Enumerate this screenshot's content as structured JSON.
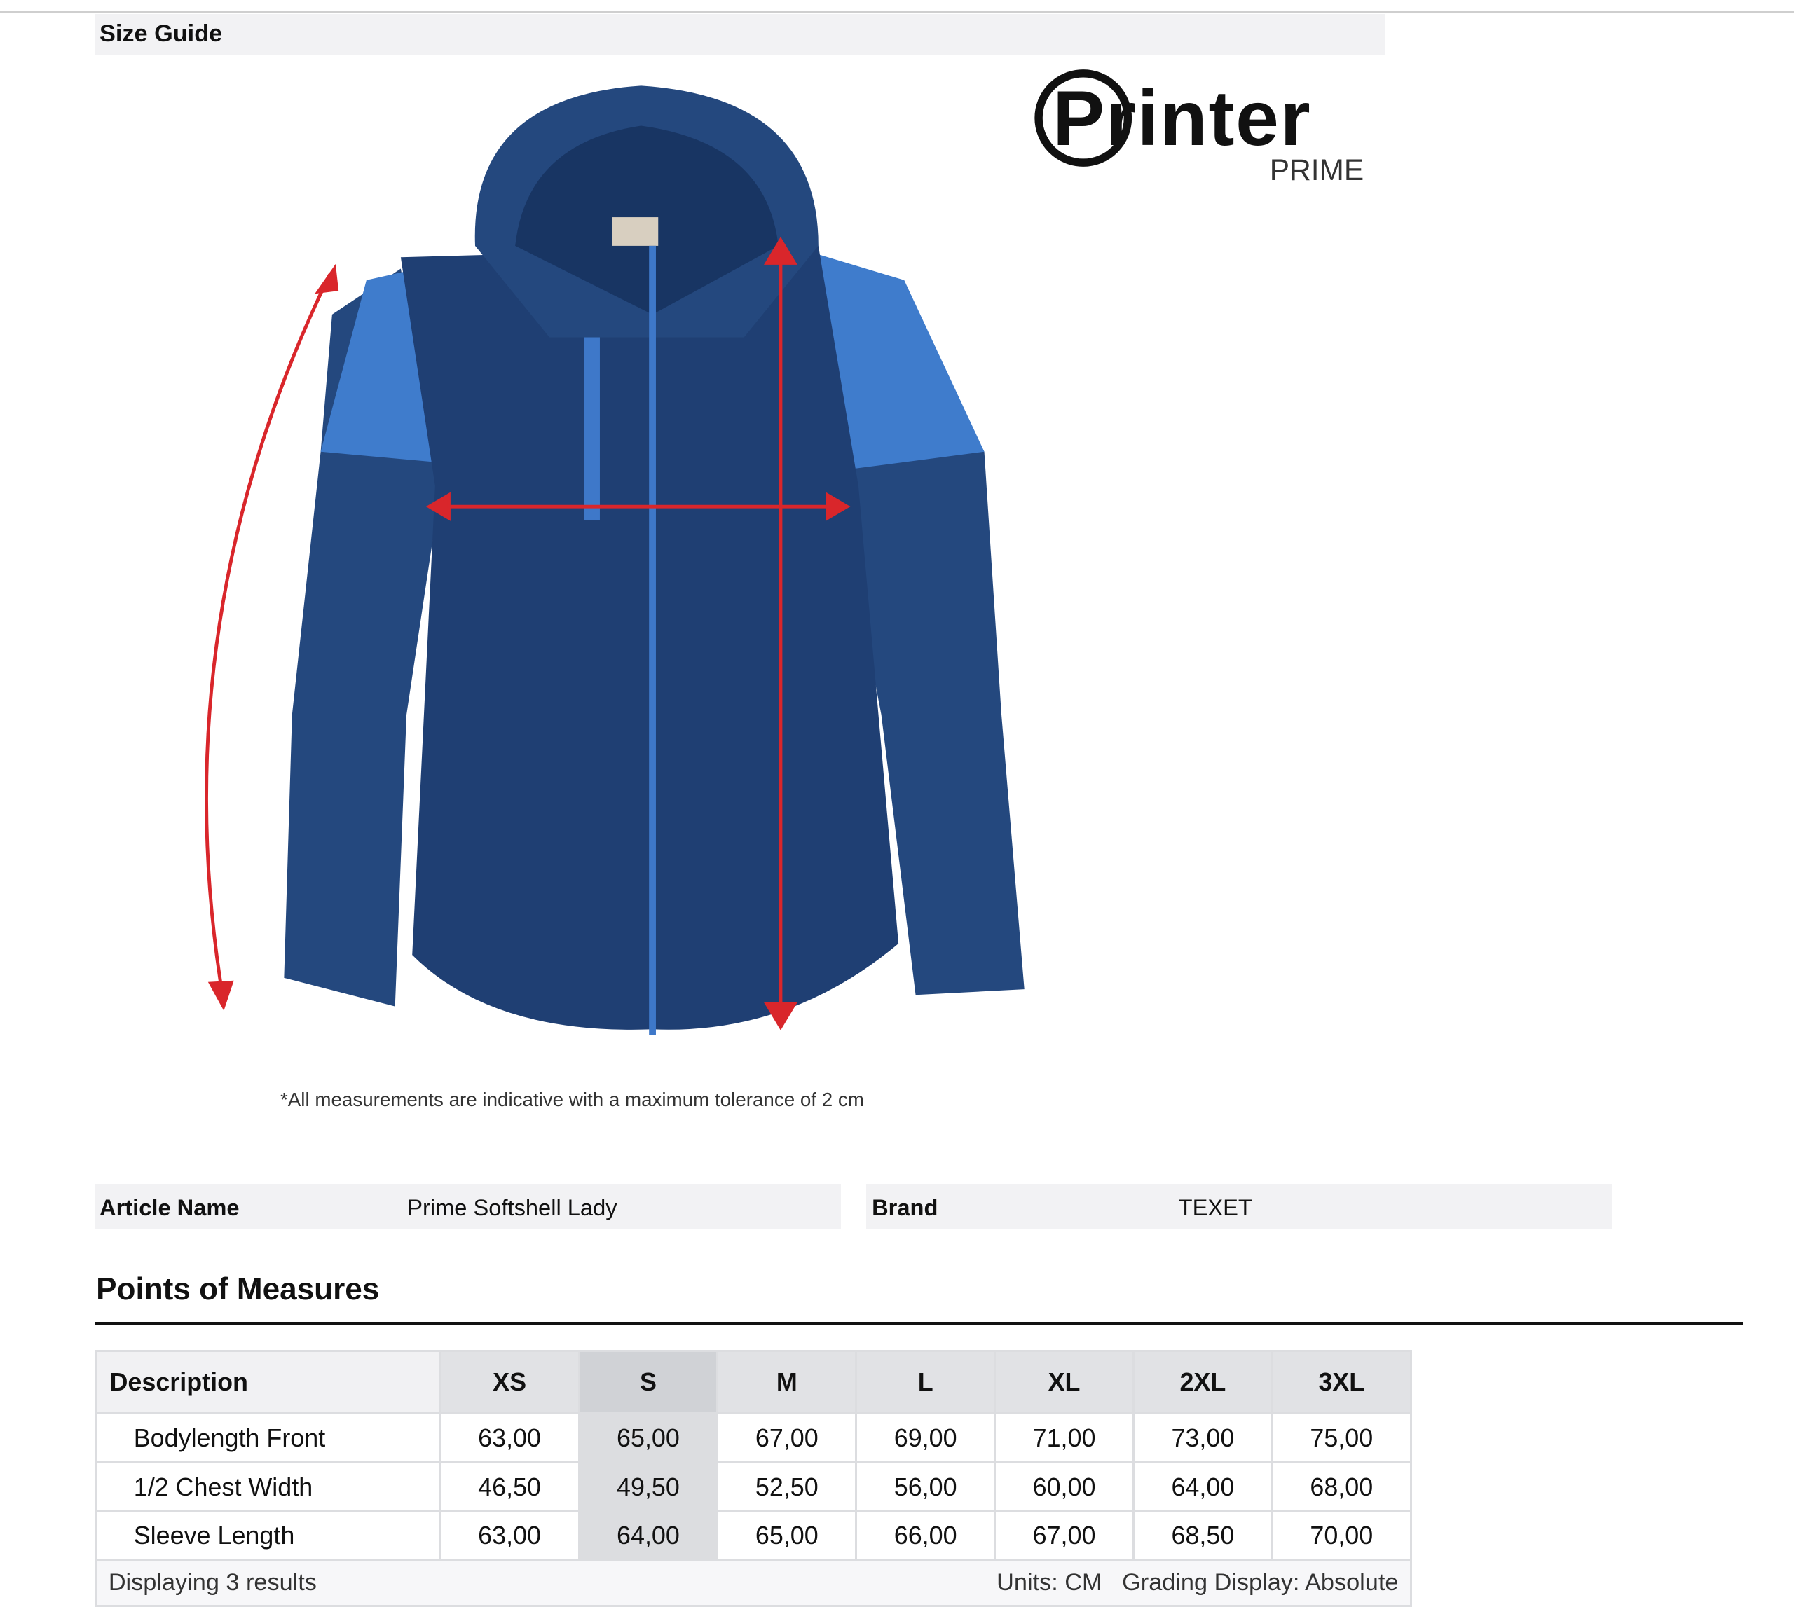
{
  "header": {
    "title": "Size Guide"
  },
  "logo": {
    "text": "Printer",
    "sub": "PRIME"
  },
  "image": {
    "icon": "jacket-measurement-diagram",
    "arrow_color": "#d9262b",
    "jacket_colors": [
      "#1f3f73",
      "#3e78c9"
    ]
  },
  "disclaimer": "*All measurements are indicative with a maximum tolerance of 2 cm",
  "article": {
    "name_label": "Article Name",
    "name_value": "Prime Softshell Lady",
    "brand_label": "Brand",
    "brand_value": "TEXET"
  },
  "section_title": "Points of Measures",
  "table": {
    "headers": [
      "Description",
      "XS",
      "S",
      "M",
      "L",
      "XL",
      "2XL",
      "3XL"
    ],
    "selected_size": "S",
    "rows": [
      {
        "desc": "Bodylength Front",
        "values": [
          "63,00",
          "65,00",
          "67,00",
          "69,00",
          "71,00",
          "73,00",
          "75,00"
        ]
      },
      {
        "desc": "1/2 Chest Width",
        "values": [
          "46,50",
          "49,50",
          "52,50",
          "56,00",
          "60,00",
          "64,00",
          "68,00"
        ]
      },
      {
        "desc": "Sleeve Length",
        "values": [
          "63,00",
          "64,00",
          "65,00",
          "66,00",
          "67,00",
          "68,50",
          "70,00"
        ]
      }
    ],
    "footer": {
      "results": "Displaying 3 results",
      "units": "Units: CM",
      "grading": "Grading Display: Absolute"
    }
  }
}
